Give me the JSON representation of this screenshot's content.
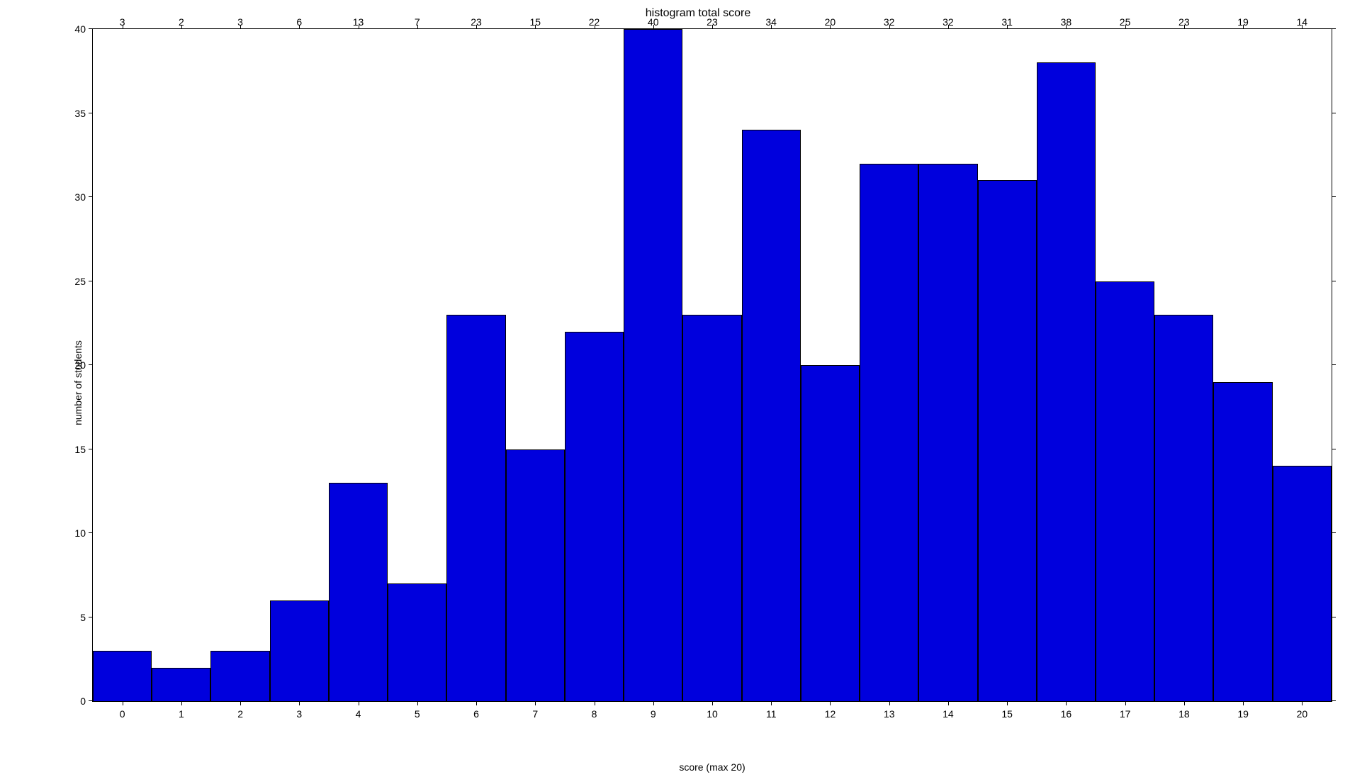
{
  "chart": {
    "type": "histogram",
    "title": "histogram total score",
    "xlabel": "score (max 20)",
    "ylabel": "number of students",
    "ylim": [
      0,
      40
    ],
    "ytick_step": 5,
    "yticks": [
      0,
      5,
      10,
      15,
      20,
      25,
      30,
      35,
      40
    ],
    "xlim": [
      -0.5,
      20.5
    ],
    "xticks": [
      0,
      1,
      2,
      3,
      4,
      5,
      6,
      7,
      8,
      9,
      10,
      11,
      12,
      13,
      14,
      15,
      16,
      17,
      18,
      19,
      20
    ],
    "bar_color": "#0000dd",
    "bar_edge_color": "#000000",
    "background_color": "#ffffff",
    "title_fontsize": 16,
    "label_fontsize": 14,
    "tick_fontsize": 14,
    "bar_label_fontsize": 14,
    "bar_width": 1.0,
    "bins": [
      {
        "score": 0,
        "count": 3
      },
      {
        "score": 1,
        "count": 2
      },
      {
        "score": 2,
        "count": 3
      },
      {
        "score": 3,
        "count": 6
      },
      {
        "score": 4,
        "count": 13
      },
      {
        "score": 5,
        "count": 7
      },
      {
        "score": 6,
        "count": 23
      },
      {
        "score": 7,
        "count": 15
      },
      {
        "score": 8,
        "count": 22
      },
      {
        "score": 9,
        "count": 40
      },
      {
        "score": 10,
        "count": 23
      },
      {
        "score": 11,
        "count": 34
      },
      {
        "score": 12,
        "count": 20
      },
      {
        "score": 13,
        "count": 32
      },
      {
        "score": 14,
        "count": 32
      },
      {
        "score": 15,
        "count": 31
      },
      {
        "score": 16,
        "count": 38
      },
      {
        "score": 17,
        "count": 25
      },
      {
        "score": 18,
        "count": 23
      },
      {
        "score": 19,
        "count": 19
      },
      {
        "score": 20,
        "count": 14
      }
    ]
  }
}
